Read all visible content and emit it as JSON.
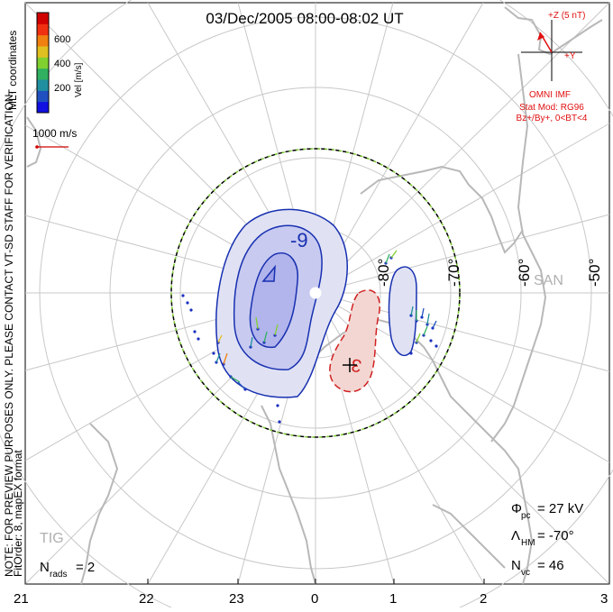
{
  "title": "03/Dec/2005 08:00-08:02 UT",
  "coords_label": "MLT coordinates",
  "verification_note": "NOTE: FOR PREVIEW PURPOSES ONLY. PLEASE CONTACT VT-SD STAFF FOR VERIFICATION.",
  "fit_note": "FitOrder: 8, mapEX format",
  "velocity_scale": {
    "title": "Vel [m/s]",
    "ticks": [
      "200",
      "400",
      "600"
    ],
    "colors": [
      "#1010e0",
      "#2050c0",
      "#2090a0",
      "#30b060",
      "#80d030",
      "#e0c020",
      "#f08010",
      "#f03010",
      "#d00000"
    ]
  },
  "ref_vector_label": "1000 m/s",
  "imf": {
    "z_label": "+Z (5 nT)",
    "y_label": "+Y",
    "source": "OMNI IMF",
    "stat_mod": "Stat Mod: RG96",
    "condition": "Bz+/By+, 0<BT<4",
    "color": "#e01010"
  },
  "latitude_labels": [
    "-80°",
    "-70°",
    "-60°",
    "-50°"
  ],
  "contour_labels": {
    "negative": "-9",
    "positive": "3"
  },
  "station_labels": {
    "san": "SAN",
    "tig": "TIG"
  },
  "stats": {
    "n_rads_label": "N",
    "n_rads_sub": "rads",
    "n_rads_value": "= 2",
    "phi_label": "Φ",
    "phi_sub": "pc",
    "phi_value": "= 27 kV",
    "lambda_label": "Λ",
    "lambda_sub": "HM",
    "lambda_value": "= -70°",
    "nvc_label": "N",
    "nvc_sub": "vc",
    "nvc_value": "= 46"
  },
  "mlt_ticks": [
    "21",
    "22",
    "23",
    "0",
    "1",
    "2",
    "3"
  ],
  "colors": {
    "negative_fill": "#c8caf0",
    "negative_line": "#1830b0",
    "positive_fill": "#f3d6d2",
    "positive_line": "#d02020",
    "coast": "#b8b8b8",
    "grid": "#c8c8c8"
  }
}
